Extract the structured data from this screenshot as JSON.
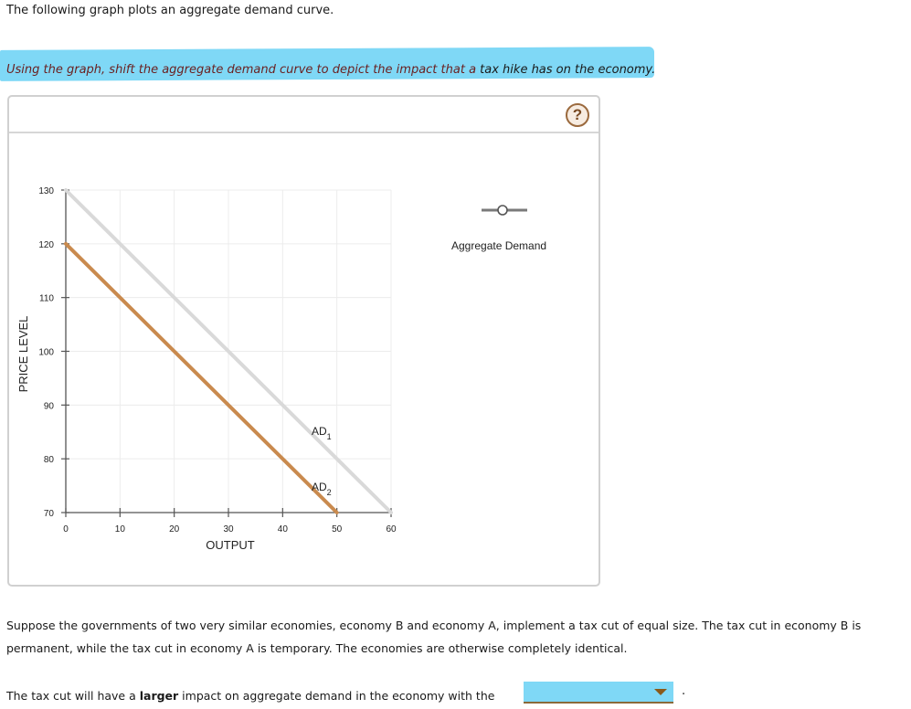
{
  "intro_text": "The following graph plots an aggregate demand curve.",
  "instruction": {
    "highlighted": "Using the graph, shift the aggregate demand curve to depict the impact that a ",
    "tail": "tax hike has on the economy."
  },
  "panel": {
    "help_icon": "question-mark-icon",
    "help_label": "?"
  },
  "chart_data": {
    "type": "line",
    "title": "",
    "xlabel": "OUTPUT",
    "ylabel": "PRICE LEVEL",
    "xlim": [
      0,
      60
    ],
    "ylim": [
      70,
      130
    ],
    "x_ticks": [
      0,
      10,
      20,
      30,
      40,
      50,
      60
    ],
    "y_ticks": [
      70,
      80,
      90,
      100,
      110,
      120,
      130
    ],
    "grid": true,
    "series": [
      {
        "name": "AD1",
        "label": "AD",
        "subscript": "1",
        "color": "#d9d9d9",
        "points": [
          [
            0,
            130
          ],
          [
            60,
            70
          ]
        ]
      },
      {
        "name": "AD2",
        "label": "AD",
        "subscript": "2",
        "color": "#c98a4e",
        "points": [
          [
            0,
            120
          ],
          [
            50,
            70
          ]
        ]
      }
    ],
    "legend": {
      "position": "right",
      "entries": [
        {
          "label": "Aggregate Demand",
          "marker": "line-with-open-circle",
          "color": "#7a7a7a"
        }
      ]
    }
  },
  "question": {
    "paragraph": "Suppose the governments of two very similar economies, economy B and economy A, implement a tax cut of equal size. The tax cut in economy B is permanent, while the tax cut in economy A is temporary. The economies are otherwise completely identical.",
    "sentence_before": "The tax cut will have a ",
    "sentence_bold": "larger",
    "sentence_after": " impact on aggregate demand in the economy with the",
    "dropdown_value": "",
    "period": "."
  }
}
